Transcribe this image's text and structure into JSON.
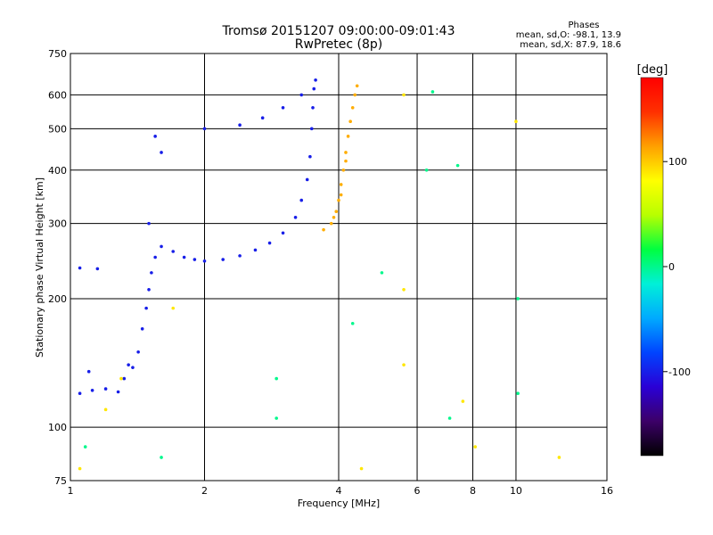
{
  "chart_data": {
    "type": "scatter",
    "title": "Tromsø 20151207 09:00:00-09:01:43",
    "subtitle": "RwPretec (8p)",
    "xlabel": "Frequency [MHz]",
    "ylabel": "Stationary phase Virtual Height [km]",
    "x_scale": "log",
    "y_scale": "log",
    "xlim": [
      1,
      16
    ],
    "ylim": [
      75,
      750
    ],
    "x_ticks": [
      1,
      2,
      4,
      6,
      8,
      10,
      16
    ],
    "y_ticks": [
      75,
      100,
      200,
      300,
      400,
      500,
      600,
      750
    ],
    "grid": true,
    "phase_box": {
      "heading": "Phases",
      "line_o": "mean, sd,O: -98.1, 13.9",
      "line_x": "mean, sd,X:  87.9, 18.6"
    },
    "colorbar": {
      "label": "[deg]",
      "range": [
        -180,
        180
      ],
      "ticks": [
        100,
        0,
        -100
      ],
      "colors": [
        "#000000",
        "#3c0068",
        "#2a00d6",
        "#0044ff",
        "#00aaff",
        "#00f0d8",
        "#00ff40",
        "#b8ff00",
        "#ffff00",
        "#ffa000",
        "#ff3000",
        "#ff0000"
      ]
    },
    "series": [
      {
        "phase_deg": -100,
        "points": [
          [
            1.05,
            120
          ],
          [
            1.12,
            122
          ],
          [
            1.2,
            123
          ],
          [
            1.28,
            121
          ],
          [
            1.32,
            130
          ],
          [
            1.38,
            138
          ],
          [
            1.42,
            150
          ],
          [
            1.45,
            170
          ],
          [
            1.48,
            190
          ],
          [
            1.5,
            210
          ],
          [
            1.52,
            230
          ],
          [
            1.55,
            250
          ],
          [
            1.6,
            265
          ],
          [
            1.7,
            258
          ],
          [
            1.8,
            250
          ],
          [
            1.9,
            247
          ],
          [
            2.0,
            245
          ],
          [
            2.2,
            247
          ],
          [
            2.4,
            252
          ],
          [
            2.6,
            260
          ],
          [
            2.8,
            270
          ],
          [
            3.0,
            285
          ],
          [
            3.2,
            310
          ],
          [
            3.3,
            340
          ],
          [
            3.4,
            380
          ],
          [
            3.45,
            430
          ],
          [
            3.48,
            500
          ],
          [
            3.5,
            560
          ],
          [
            3.52,
            620
          ],
          [
            3.55,
            650
          ],
          [
            3.3,
            600
          ],
          [
            3.0,
            560
          ],
          [
            2.7,
            530
          ],
          [
            2.4,
            510
          ],
          [
            2.0,
            500
          ],
          [
            1.55,
            480
          ],
          [
            1.6,
            440
          ],
          [
            1.05,
            236
          ],
          [
            1.15,
            235
          ],
          [
            1.1,
            135
          ],
          [
            1.35,
            140
          ],
          [
            1.5,
            300
          ]
        ]
      },
      {
        "phase_deg": 110,
        "points": [
          [
            3.7,
            290
          ],
          [
            3.85,
            300
          ],
          [
            3.95,
            320
          ],
          [
            4.0,
            340
          ],
          [
            4.05,
            370
          ],
          [
            4.1,
            400
          ],
          [
            4.15,
            440
          ],
          [
            4.2,
            480
          ],
          [
            4.25,
            520
          ],
          [
            4.3,
            560
          ],
          [
            4.35,
            600
          ],
          [
            4.4,
            630
          ],
          [
            3.9,
            310
          ],
          [
            4.05,
            350
          ],
          [
            4.15,
            420
          ]
        ]
      },
      {
        "phase_deg": 90,
        "points": [
          [
            1.05,
            80
          ],
          [
            1.3,
            130
          ],
          [
            1.7,
            190
          ],
          [
            5.6,
            210
          ],
          [
            5.6,
            140
          ],
          [
            7.6,
            115
          ],
          [
            8.1,
            90
          ],
          [
            10.0,
            520
          ],
          [
            12.5,
            85
          ],
          [
            4.5,
            80
          ],
          [
            5.6,
            600
          ],
          [
            1.2,
            110
          ]
        ]
      },
      {
        "phase_deg": 0,
        "points": [
          [
            1.08,
            90
          ],
          [
            1.6,
            85
          ],
          [
            2.9,
            105
          ],
          [
            4.3,
            175
          ],
          [
            5.0,
            230
          ],
          [
            6.3,
            400
          ],
          [
            7.1,
            105
          ],
          [
            7.4,
            410
          ],
          [
            10.1,
            200
          ],
          [
            10.1,
            120
          ],
          [
            6.5,
            610
          ],
          [
            2.9,
            130
          ]
        ]
      }
    ]
  }
}
